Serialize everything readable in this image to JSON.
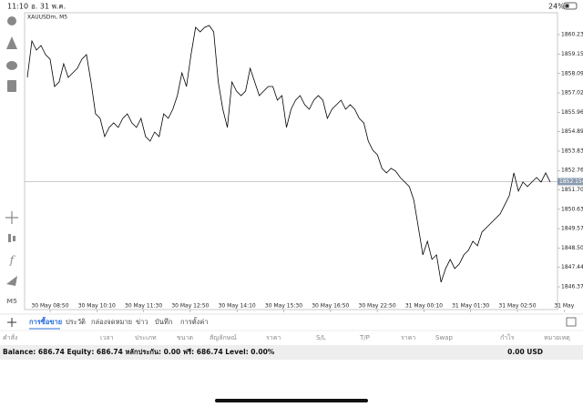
{
  "status_bar": {
    "time": "11:10",
    "date": "อ. 31 พ.ค.",
    "battery": "24%"
  },
  "toolbar": {
    "timeframe": "M5"
  },
  "chart": {
    "type": "line",
    "symbol": "XAUUSDm, M5",
    "color": "#000000",
    "ylim": [
      1845.125,
      1861.43
    ],
    "yticks": [
      {
        "value": 1860.23,
        "label": "1860.230"
      },
      1859.155,
      {
        "value": 1858.09,
        "label": "1858.090"
      },
      1857.025,
      {
        "value": 1855.96,
        "label": "1855.960"
      },
      1854.895,
      {
        "value": 1853.83,
        "label": "1853.830"
      },
      1852.765,
      {
        "value": 1851.7,
        "label": "1851.700"
      },
      1850.635,
      {
        "value": 1849.57,
        "label": "1849.570"
      },
      1848.505,
      {
        "value": 1847.44,
        "label": "1847.440"
      },
      1846.375
    ],
    "current_price": 1852.154,
    "xlabels": [
      "30 May 08:50",
      "30 May 10:10",
      "30 May 11:30",
      "30 May 12:50",
      "30 May 14:10",
      "30 May 15:30",
      "30 May 16:50",
      "30 May 22:50",
      "31 May 00:10",
      "31 May 01:30",
      "31 May 02:50",
      "31 May"
    ],
    "values": [
      1857.88,
      1859.88,
      1859.38,
      1859.63,
      1859.13,
      1858.88,
      1857.38,
      1857.63,
      1858.63,
      1857.88,
      1858.13,
      1858.38,
      1858.88,
      1859.13,
      1857.63,
      1855.88,
      1855.63,
      1854.63,
      1855.13,
      1855.38,
      1855.13,
      1855.63,
      1855.88,
      1855.38,
      1855.13,
      1855.63,
      1854.63,
      1854.38,
      1854.88,
      1854.63,
      1855.88,
      1855.63,
      1856.13,
      1856.88,
      1858.13,
      1857.38,
      1859.13,
      1860.63,
      1860.38,
      1860.63,
      1860.73,
      1860.38,
      1857.63,
      1856.13,
      1855.13,
      1857.63,
      1857.13,
      1856.88,
      1857.13,
      1858.38,
      1857.63,
      1856.88,
      1857.13,
      1857.38,
      1857.38,
      1856.63,
      1856.88,
      1855.13,
      1856.13,
      1856.63,
      1856.88,
      1856.38,
      1856.13,
      1856.63,
      1856.88,
      1856.63,
      1855.63,
      1856.13,
      1856.38,
      1856.63,
      1856.13,
      1856.38,
      1856.13,
      1855.63,
      1855.38,
      1854.38,
      1853.88,
      1853.63,
      1852.88,
      1852.63,
      1852.88,
      1852.73,
      1852.38,
      1852.13,
      1851.88,
      1851.13,
      1849.63,
      1848.13,
      1848.88,
      1847.88,
      1848.13,
      1846.63,
      1847.38,
      1847.88,
      1847.38,
      1847.63,
      1848.13,
      1848.38,
      1848.88,
      1848.63,
      1849.38,
      1849.63,
      1849.88,
      1850.13,
      1850.38,
      1850.88,
      1851.38,
      1852.63,
      1851.63,
      1852.13,
      1851.88,
      1852.13,
      1852.38,
      1852.13,
      1852.63,
      1852.13
    ]
  },
  "tabs": [
    "การซื้อขาย",
    "ประวัติ",
    "กล่องจดหมาย",
    "ข่าว",
    "บันทึก",
    "การตั้งค่า"
  ],
  "columns": [
    "คำสั่ง",
    "เวลา",
    "ประเภท",
    "ขนาด",
    "สัญลักษณ์",
    "ราคา",
    "S/L",
    "T/P",
    "ราคา",
    "Swap",
    "กำไร",
    "หมายเหตุ"
  ],
  "summary": {
    "text": "Balance: 686.74 Equity: 686.74 หลักประกัน: 0.00 ฟรี: 686.74 Level: 0.00%",
    "total": "0.00 USD"
  }
}
